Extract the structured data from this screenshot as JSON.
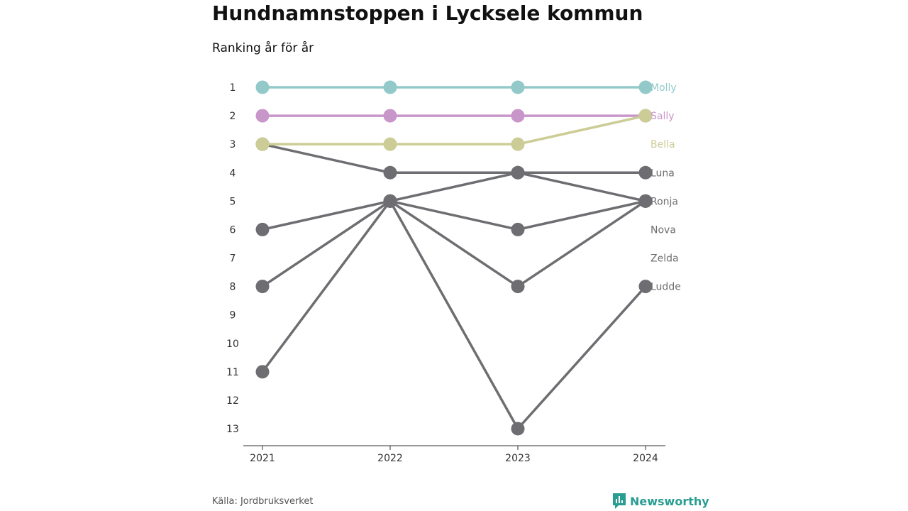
{
  "header": {
    "title": "Hundnamnstoppen i Lycksele kommun",
    "subtitle": "Ranking år för år"
  },
  "footer": {
    "source": "Källa: Jordbruksverket",
    "brand": "Newsworthy"
  },
  "colors": {
    "Molly": "#93c9c9",
    "Sally": "#c996c9",
    "Bella": "#cccc96",
    "other": "#6e6e72"
  },
  "chart_data": {
    "type": "line",
    "x": [
      2021,
      2022,
      2023,
      2024
    ],
    "y_ticks": [
      1,
      2,
      3,
      4,
      5,
      6,
      7,
      8,
      9,
      10,
      11,
      12,
      13
    ],
    "ylim": [
      1,
      13
    ],
    "y_reversed": true,
    "series": [
      {
        "name": "Molly",
        "values": [
          1,
          1,
          1,
          1
        ]
      },
      {
        "name": "Sally",
        "values": [
          2,
          2,
          2,
          2
        ]
      },
      {
        "name": "Bella",
        "values": [
          3,
          3,
          3,
          2
        ]
      },
      {
        "name": "Luna",
        "values": [
          3,
          4,
          4,
          5
        ]
      },
      {
        "name": "Ronja",
        "values": [
          6,
          5,
          4,
          4
        ]
      },
      {
        "name": "Nova",
        "values": [
          11,
          5,
          6,
          5
        ]
      },
      {
        "name": "Zelda",
        "values": [
          8,
          5,
          8,
          5
        ]
      },
      {
        "name": "Ludde",
        "values": [
          null,
          5,
          13,
          8
        ]
      }
    ],
    "end_labels": [
      "Molly",
      "Sally",
      "Bella",
      "Luna",
      "Ronja",
      "Nova",
      "Zelda",
      "Ludde"
    ]
  }
}
